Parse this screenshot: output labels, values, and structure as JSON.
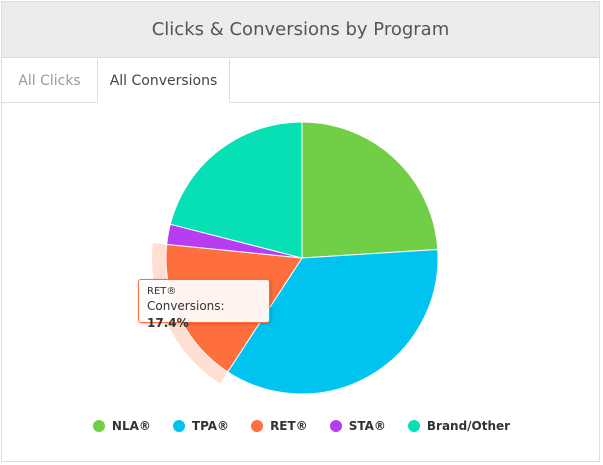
{
  "header": {
    "title": "Clicks & Conversions by Program"
  },
  "tabs": [
    {
      "label": "All Clicks",
      "active": false
    },
    {
      "label": "All Conversions",
      "active": true
    }
  ],
  "tooltip": {
    "series": "RET®",
    "label": "Conversions:",
    "value": "17.4%"
  },
  "chart_data": {
    "type": "pie",
    "title": "",
    "categories": [
      "NLA®",
      "TPA®",
      "RET®",
      "STA®",
      "Brand/Other"
    ],
    "values": [
      24.0,
      35.2,
      17.4,
      2.4,
      21.0
    ],
    "colors": [
      "#70cf46",
      "#00c3f0",
      "#ff6e3d",
      "#b73cf2",
      "#07dfb4"
    ],
    "hovered": "RET®",
    "legend": "bottom"
  }
}
